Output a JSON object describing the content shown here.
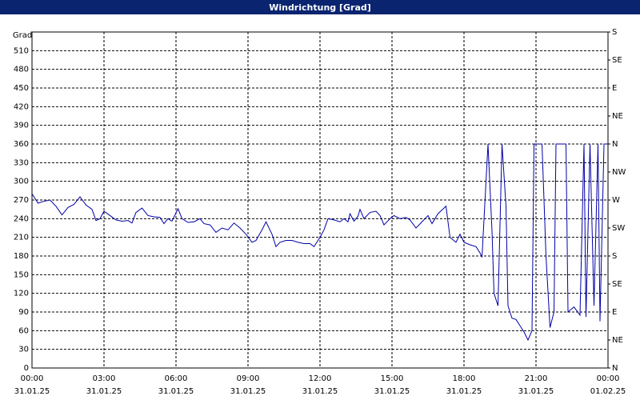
{
  "chart_data": {
    "type": "line",
    "title": "Windrichtung [Grad]",
    "y_label": "Grad",
    "xlim": [
      "31.01.25 00:00",
      "01.02.25 00:00"
    ],
    "xticks": [
      {
        "value": "31.01.25 00:00",
        "label": [
          "00:00",
          "31.01.25"
        ]
      },
      {
        "value": "31.01.25 03:00",
        "label": [
          "03:00",
          "31.01.25"
        ]
      },
      {
        "value": "31.01.25 06:00",
        "label": [
          "06:00",
          "31.01.25"
        ]
      },
      {
        "value": "31.01.25 09:00",
        "label": [
          "09:00",
          "31.01.25"
        ]
      },
      {
        "value": "31.01.25 12:00",
        "label": [
          "12:00",
          "31.01.25"
        ]
      },
      {
        "value": "31.01.25 15:00",
        "label": [
          "15:00",
          "31.01.25"
        ]
      },
      {
        "value": "31.01.25 18:00",
        "label": [
          "18:00",
          "31.01.25"
        ]
      },
      {
        "value": "31.01.25 21:00",
        "label": [
          "21:00",
          "31.01.25"
        ]
      },
      {
        "value": "01.02.25 00:00",
        "label": [
          "00:00",
          "01.02.25"
        ]
      }
    ],
    "ylim": [
      0,
      540
    ],
    "yticks": [
      0,
      30,
      60,
      90,
      120,
      150,
      180,
      210,
      240,
      270,
      300,
      330,
      360,
      390,
      420,
      450,
      480,
      510
    ],
    "y2lim": [
      0,
      540
    ],
    "y2ticks": [
      {
        "value": 0,
        "label": "N"
      },
      {
        "value": 45,
        "label": "NE"
      },
      {
        "value": 90,
        "label": "E"
      },
      {
        "value": 135,
        "label": "SE"
      },
      {
        "value": 180,
        "label": "S"
      },
      {
        "value": 225,
        "label": "SW"
      },
      {
        "value": 270,
        "label": "W"
      },
      {
        "value": 315,
        "label": "NW"
      },
      {
        "value": 360,
        "label": "N"
      },
      {
        "value": 405,
        "label": "NE"
      },
      {
        "value": 450,
        "label": "E"
      },
      {
        "value": 495,
        "label": "SE"
      },
      {
        "value": 540,
        "label": "S"
      }
    ],
    "grid": true,
    "series": [
      {
        "color": "#0000a8",
        "x": [
          "31.01.25 00:00",
          "31.01.25 00:15",
          "31.01.25 00:30",
          "31.01.25 00:45",
          "31.01.25 01:00",
          "31.01.25 01:15",
          "31.01.25 01:30",
          "31.01.25 01:45",
          "31.01.25 02:00",
          "31.01.25 02:15",
          "31.01.25 02:30",
          "31.01.25 02:40",
          "31.01.25 02:50",
          "31.01.25 03:00",
          "31.01.25 03:15",
          "31.01.25 03:30",
          "31.01.25 03:45",
          "31.01.25 04:00",
          "31.01.25 04:10",
          "31.01.25 04:20",
          "31.01.25 04:35",
          "31.01.25 04:50",
          "31.01.25 05:05",
          "31.01.25 05:20",
          "31.01.25 05:30",
          "31.01.25 05:40",
          "31.01.25 05:50",
          "31.01.25 06:05",
          "31.01.25 06:15",
          "31.01.25 06:30",
          "31.01.25 06:45",
          "31.01.25 07:00",
          "31.01.25 07:10",
          "31.01.25 07:25",
          "31.01.25 07:40",
          "31.01.25 07:55",
          "31.01.25 08:10",
          "31.01.25 08:25",
          "31.01.25 08:40",
          "31.01.25 08:55",
          "31.01.25 09:10",
          "31.01.25 09:20",
          "31.01.25 09:35",
          "31.01.25 09:45",
          "31.01.25 10:00",
          "31.01.25 10:10",
          "31.01.25 10:20",
          "31.01.25 10:35",
          "31.01.25 10:50",
          "31.01.25 11:05",
          "31.01.25 11:20",
          "31.01.25 11:35",
          "31.01.25 11:45",
          "31.01.25 12:00",
          "31.01.25 12:10",
          "31.01.25 12:20",
          "31.01.25 12:35",
          "31.01.25 12:50",
          "31.01.25 13:00",
          "31.01.25 13:10",
          "31.01.25 13:15",
          "31.01.25 13:25",
          "31.01.25 13:35",
          "31.01.25 13:40",
          "31.01.25 13:50",
          "31.01.25 14:05",
          "31.01.25 14:20",
          "31.01.25 14:30",
          "31.01.25 14:40",
          "31.01.25 14:55",
          "31.01.25 15:05",
          "31.01.25 15:20",
          "31.01.25 15:35",
          "31.01.25 15:45",
          "31.01.25 16:00",
          "31.01.25 16:15",
          "31.01.25 16:30",
          "31.01.25 16:40",
          "31.01.25 16:55",
          "31.01.25 17:15",
          "31.01.25 17:25",
          "31.01.25 17:40",
          "31.01.25 17:50",
          "31.01.25 18:00",
          "31.01.25 18:15",
          "31.01.25 18:30",
          "31.01.25 18:40",
          "31.01.25 18:45",
          "31.01.25 19:00",
          "31.01.25 19:10",
          "31.01.25 19:15",
          "31.01.25 19:25",
          "31.01.25 19:35",
          "31.01.25 19:45",
          "31.01.25 19:50",
          "31.01.25 20:00",
          "31.01.25 20:10",
          "31.01.25 20:20",
          "31.01.25 20:30",
          "31.01.25 20:40",
          "31.01.25 20:50",
          "31.01.25 20:55",
          "31.01.25 21:15",
          "31.01.25 21:25",
          "31.01.25 21:35",
          "31.01.25 21:45",
          "31.01.25 21:50",
          "31.01.25 22:15",
          "31.01.25 22:20",
          "31.01.25 22:35",
          "31.01.25 22:50",
          "31.01.25 23:00",
          "31.01.25 23:05",
          "31.01.25 23:15",
          "31.01.25 23:25",
          "31.01.25 23:35",
          "31.01.25 23:40",
          "31.01.25 23:50",
          "01.02.25 00:00"
        ],
        "values": [
          280,
          265,
          268,
          270,
          260,
          246,
          258,
          263,
          275,
          262,
          255,
          237,
          240,
          252,
          245,
          238,
          236,
          237,
          233,
          250,
          257,
          245,
          243,
          242,
          232,
          240,
          236,
          256,
          240,
          234,
          235,
          240,
          232,
          230,
          218,
          225,
          222,
          233,
          225,
          215,
          202,
          205,
          222,
          235,
          215,
          195,
          202,
          205,
          205,
          202,
          200,
          200,
          195,
          210,
          222,
          240,
          238,
          235,
          240,
          235,
          248,
          236,
          244,
          255,
          240,
          250,
          252,
          245,
          230,
          240,
          245,
          240,
          242,
          238,
          225,
          235,
          245,
          232,
          248,
          260,
          210,
          202,
          215,
          202,
          198,
          195,
          185,
          178,
          360,
          220,
          120,
          100,
          360,
          260,
          100,
          80,
          78,
          68,
          58,
          45,
          60,
          360,
          360,
          180,
          65,
          90,
          360,
          360,
          90,
          98,
          85,
          360,
          82,
          360,
          100,
          360,
          75,
          360,
          360
        ]
      }
    ]
  }
}
